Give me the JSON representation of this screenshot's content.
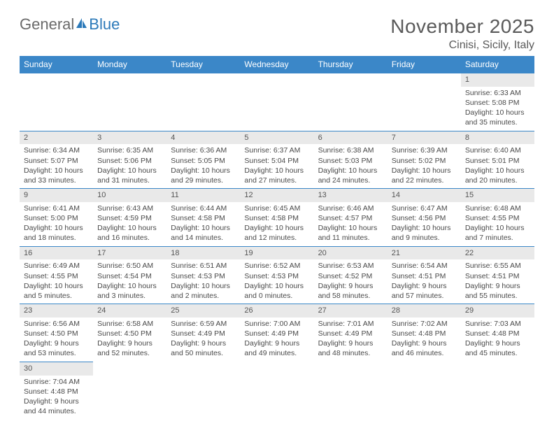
{
  "brand": {
    "part1": "General",
    "part2": "Blue"
  },
  "title": "November 2025",
  "location": "Cinisi, Sicily, Italy",
  "colors": {
    "header_bg": "#3b87c8",
    "header_text": "#ffffff",
    "daynum_bg": "#e9e9e9",
    "blank_bg": "#f0f0f0",
    "rule": "#3b87c8",
    "text": "#4a4a4a",
    "title_text": "#5a5a5a"
  },
  "weekdays": [
    "Sunday",
    "Monday",
    "Tuesday",
    "Wednesday",
    "Thursday",
    "Friday",
    "Saturday"
  ],
  "weeks": [
    [
      null,
      null,
      null,
      null,
      null,
      null,
      {
        "n": "1",
        "sr": "Sunrise: 6:33 AM",
        "ss": "Sunset: 5:08 PM",
        "dl": "Daylight: 10 hours and 35 minutes."
      }
    ],
    [
      {
        "n": "2",
        "sr": "Sunrise: 6:34 AM",
        "ss": "Sunset: 5:07 PM",
        "dl": "Daylight: 10 hours and 33 minutes."
      },
      {
        "n": "3",
        "sr": "Sunrise: 6:35 AM",
        "ss": "Sunset: 5:06 PM",
        "dl": "Daylight: 10 hours and 31 minutes."
      },
      {
        "n": "4",
        "sr": "Sunrise: 6:36 AM",
        "ss": "Sunset: 5:05 PM",
        "dl": "Daylight: 10 hours and 29 minutes."
      },
      {
        "n": "5",
        "sr": "Sunrise: 6:37 AM",
        "ss": "Sunset: 5:04 PM",
        "dl": "Daylight: 10 hours and 27 minutes."
      },
      {
        "n": "6",
        "sr": "Sunrise: 6:38 AM",
        "ss": "Sunset: 5:03 PM",
        "dl": "Daylight: 10 hours and 24 minutes."
      },
      {
        "n": "7",
        "sr": "Sunrise: 6:39 AM",
        "ss": "Sunset: 5:02 PM",
        "dl": "Daylight: 10 hours and 22 minutes."
      },
      {
        "n": "8",
        "sr": "Sunrise: 6:40 AM",
        "ss": "Sunset: 5:01 PM",
        "dl": "Daylight: 10 hours and 20 minutes."
      }
    ],
    [
      {
        "n": "9",
        "sr": "Sunrise: 6:41 AM",
        "ss": "Sunset: 5:00 PM",
        "dl": "Daylight: 10 hours and 18 minutes."
      },
      {
        "n": "10",
        "sr": "Sunrise: 6:43 AM",
        "ss": "Sunset: 4:59 PM",
        "dl": "Daylight: 10 hours and 16 minutes."
      },
      {
        "n": "11",
        "sr": "Sunrise: 6:44 AM",
        "ss": "Sunset: 4:58 PM",
        "dl": "Daylight: 10 hours and 14 minutes."
      },
      {
        "n": "12",
        "sr": "Sunrise: 6:45 AM",
        "ss": "Sunset: 4:58 PM",
        "dl": "Daylight: 10 hours and 12 minutes."
      },
      {
        "n": "13",
        "sr": "Sunrise: 6:46 AM",
        "ss": "Sunset: 4:57 PM",
        "dl": "Daylight: 10 hours and 11 minutes."
      },
      {
        "n": "14",
        "sr": "Sunrise: 6:47 AM",
        "ss": "Sunset: 4:56 PM",
        "dl": "Daylight: 10 hours and 9 minutes."
      },
      {
        "n": "15",
        "sr": "Sunrise: 6:48 AM",
        "ss": "Sunset: 4:55 PM",
        "dl": "Daylight: 10 hours and 7 minutes."
      }
    ],
    [
      {
        "n": "16",
        "sr": "Sunrise: 6:49 AM",
        "ss": "Sunset: 4:55 PM",
        "dl": "Daylight: 10 hours and 5 minutes."
      },
      {
        "n": "17",
        "sr": "Sunrise: 6:50 AM",
        "ss": "Sunset: 4:54 PM",
        "dl": "Daylight: 10 hours and 3 minutes."
      },
      {
        "n": "18",
        "sr": "Sunrise: 6:51 AM",
        "ss": "Sunset: 4:53 PM",
        "dl": "Daylight: 10 hours and 2 minutes."
      },
      {
        "n": "19",
        "sr": "Sunrise: 6:52 AM",
        "ss": "Sunset: 4:53 PM",
        "dl": "Daylight: 10 hours and 0 minutes."
      },
      {
        "n": "20",
        "sr": "Sunrise: 6:53 AM",
        "ss": "Sunset: 4:52 PM",
        "dl": "Daylight: 9 hours and 58 minutes."
      },
      {
        "n": "21",
        "sr": "Sunrise: 6:54 AM",
        "ss": "Sunset: 4:51 PM",
        "dl": "Daylight: 9 hours and 57 minutes."
      },
      {
        "n": "22",
        "sr": "Sunrise: 6:55 AM",
        "ss": "Sunset: 4:51 PM",
        "dl": "Daylight: 9 hours and 55 minutes."
      }
    ],
    [
      {
        "n": "23",
        "sr": "Sunrise: 6:56 AM",
        "ss": "Sunset: 4:50 PM",
        "dl": "Daylight: 9 hours and 53 minutes."
      },
      {
        "n": "24",
        "sr": "Sunrise: 6:58 AM",
        "ss": "Sunset: 4:50 PM",
        "dl": "Daylight: 9 hours and 52 minutes."
      },
      {
        "n": "25",
        "sr": "Sunrise: 6:59 AM",
        "ss": "Sunset: 4:49 PM",
        "dl": "Daylight: 9 hours and 50 minutes."
      },
      {
        "n": "26",
        "sr": "Sunrise: 7:00 AM",
        "ss": "Sunset: 4:49 PM",
        "dl": "Daylight: 9 hours and 49 minutes."
      },
      {
        "n": "27",
        "sr": "Sunrise: 7:01 AM",
        "ss": "Sunset: 4:49 PM",
        "dl": "Daylight: 9 hours and 48 minutes."
      },
      {
        "n": "28",
        "sr": "Sunrise: 7:02 AM",
        "ss": "Sunset: 4:48 PM",
        "dl": "Daylight: 9 hours and 46 minutes."
      },
      {
        "n": "29",
        "sr": "Sunrise: 7:03 AM",
        "ss": "Sunset: 4:48 PM",
        "dl": "Daylight: 9 hours and 45 minutes."
      }
    ],
    [
      {
        "n": "30",
        "sr": "Sunrise: 7:04 AM",
        "ss": "Sunset: 4:48 PM",
        "dl": "Daylight: 9 hours and 44 minutes."
      },
      null,
      null,
      null,
      null,
      null,
      null
    ]
  ]
}
